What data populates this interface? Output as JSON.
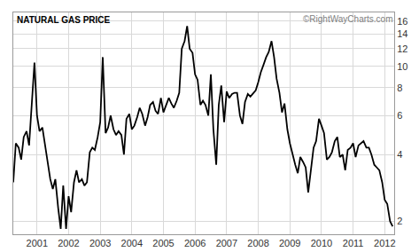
{
  "chart_data": {
    "type": "line",
    "title": "NATURAL GAS PRICE",
    "annotations": [
      "©RightWayCharts.com"
    ],
    "x": [
      2000.25,
      2000.33,
      2000.42,
      2000.5,
      2000.58,
      2000.67,
      2000.75,
      2000.83,
      2000.92,
      2001,
      2001.08,
      2001.17,
      2001.25,
      2001.33,
      2001.42,
      2001.5,
      2001.58,
      2001.67,
      2001.75,
      2001.83,
      2001.92,
      2002,
      2002.08,
      2002.17,
      2002.25,
      2002.33,
      2002.42,
      2002.5,
      2002.58,
      2002.67,
      2002.75,
      2002.83,
      2002.92,
      2003,
      2003.08,
      2003.17,
      2003.25,
      2003.33,
      2003.42,
      2003.5,
      2003.58,
      2003.67,
      2003.75,
      2003.83,
      2003.92,
      2004,
      2004.08,
      2004.17,
      2004.25,
      2004.33,
      2004.42,
      2004.5,
      2004.58,
      2004.67,
      2004.75,
      2004.83,
      2004.92,
      2005,
      2005.08,
      2005.17,
      2005.25,
      2005.33,
      2005.42,
      2005.5,
      2005.58,
      2005.67,
      2005.75,
      2005.83,
      2005.92,
      2006,
      2006.08,
      2006.17,
      2006.25,
      2006.33,
      2006.42,
      2006.5,
      2006.58,
      2006.67,
      2006.75,
      2006.83,
      2006.92,
      2007,
      2007.08,
      2007.17,
      2007.25,
      2007.33,
      2007.42,
      2007.5,
      2007.58,
      2007.67,
      2007.75,
      2007.83,
      2007.92,
      2008,
      2008.08,
      2008.17,
      2008.25,
      2008.33,
      2008.42,
      2008.5,
      2008.58,
      2008.67,
      2008.75,
      2008.83,
      2008.92,
      2009,
      2009.08,
      2009.17,
      2009.25,
      2009.33,
      2009.42,
      2009.5,
      2009.58,
      2009.67,
      2009.75,
      2009.83,
      2009.92,
      2010,
      2010.08,
      2010.17,
      2010.25,
      2010.33,
      2010.42,
      2010.5,
      2010.58,
      2010.67,
      2010.75,
      2010.83,
      2010.92,
      2011,
      2011.08,
      2011.17,
      2011.25,
      2011.33,
      2011.42,
      2011.5,
      2011.58,
      2011.67,
      2011.75,
      2011.83,
      2011.92,
      2012,
      2012.08,
      2012.17,
      2012.25
    ],
    "values": [
      3.0,
      4.5,
      4.3,
      3.8,
      4.8,
      5.1,
      4.4,
      6.5,
      10.4,
      6.0,
      5.1,
      5.3,
      4.5,
      3.7,
      3.1,
      2.8,
      3.1,
      2.3,
      1.85,
      2.9,
      1.85,
      2.6,
      2.2,
      3.0,
      3.4,
      3.0,
      3.1,
      2.9,
      3.0,
      4.1,
      4.3,
      4.2,
      4.8,
      5.6,
      11.0,
      5.0,
      5.3,
      6.0,
      5.2,
      4.9,
      5.1,
      4.9,
      4.0,
      5.8,
      6.1,
      5.2,
      5.4,
      5.9,
      6.5,
      6.1,
      5.4,
      5.9,
      6.7,
      6.9,
      6.3,
      6.1,
      7.2,
      6.2,
      6.6,
      7.2,
      6.8,
      6.5,
      7.0,
      7.6,
      12.0,
      13.0,
      15.2,
      12.0,
      11.5,
      9.2,
      8.7,
      6.7,
      7.0,
      6.7,
      6.0,
      9.2,
      5.2,
      3.6,
      6.7,
      8.2,
      5.6,
      7.7,
      7.2,
      7.5,
      7.6,
      7.6,
      6.0,
      5.5,
      6.9,
      7.5,
      7.3,
      7.5,
      7.8,
      8.5,
      9.4,
      10.2,
      11.0,
      11.6,
      13.0,
      11.0,
      8.8,
      7.6,
      6.2,
      6.8,
      5.2,
      4.5,
      4.0,
      3.6,
      3.3,
      3.9,
      3.7,
      3.5,
      2.7,
      3.5,
      4.3,
      4.6,
      5.8,
      5.4,
      5.0,
      3.8,
      3.9,
      4.1,
      4.6,
      4.8,
      3.9,
      4.0,
      3.4,
      4.2,
      4.3,
      4.5,
      3.9,
      4.4,
      4.5,
      4.6,
      4.3,
      4.3,
      4.0,
      3.6,
      3.5,
      3.4,
      3.0,
      2.5,
      2.4,
      2.0,
      1.9
    ],
    "color": "#000000",
    "log": "y",
    "xlim": [
      2000.25,
      2012.3
    ],
    "xticks": [
      2001,
      2002,
      2003,
      2004,
      2005,
      2006,
      2007,
      2008,
      2009,
      2010,
      2011,
      2012
    ],
    "ylim": [
      1.75,
      17.5
    ],
    "yticks": [
      2,
      4,
      6,
      8,
      10,
      12,
      14,
      16
    ],
    "grid": true
  }
}
